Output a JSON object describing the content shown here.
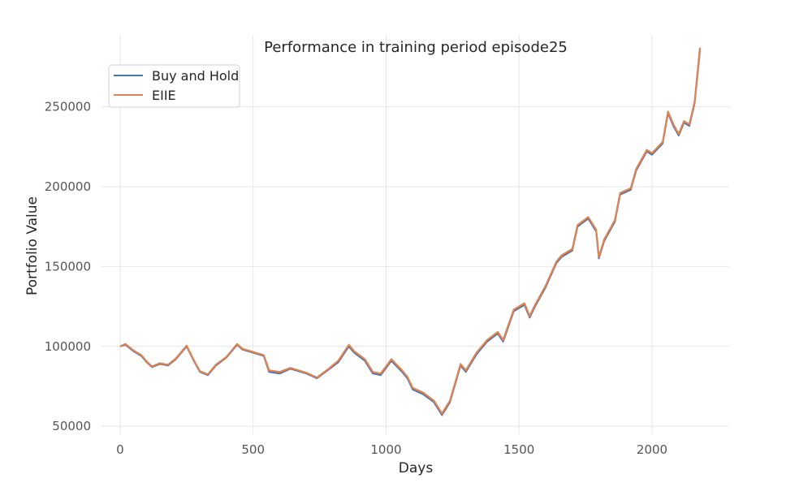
{
  "chart_data": {
    "type": "line",
    "title": "Performance in training period episode25",
    "xlabel": "Days",
    "ylabel": "Portfolio Value",
    "xlim": [
      -70,
      2290
    ],
    "ylim": [
      45000,
      295000
    ],
    "x_ticks": [
      0,
      500,
      1000,
      1500,
      2000
    ],
    "y_ticks": [
      50000,
      100000,
      150000,
      200000,
      250000
    ],
    "grid": true,
    "legend_placement": "top-left",
    "series": [
      {
        "name": "Buy and Hold",
        "color": "#4c72b0",
        "x": [
          0,
          20,
          50,
          80,
          100,
          120,
          150,
          180,
          210,
          250,
          280,
          300,
          330,
          360,
          400,
          440,
          460,
          500,
          540,
          560,
          600,
          640,
          700,
          740,
          780,
          820,
          860,
          880,
          920,
          950,
          980,
          1020,
          1060,
          1080,
          1100,
          1140,
          1180,
          1210,
          1240,
          1280,
          1300,
          1340,
          1380,
          1420,
          1440,
          1480,
          1520,
          1540,
          1560,
          1600,
          1640,
          1660,
          1700,
          1720,
          1760,
          1790,
          1800,
          1820,
          1860,
          1880,
          1920,
          1940,
          1980,
          2000,
          2040,
          2060,
          2080,
          2100,
          2120,
          2140,
          2160,
          2180
        ],
        "y": [
          100000,
          101000,
          97000,
          94000,
          90000,
          87000,
          89000,
          88000,
          92000,
          100000,
          90000,
          84000,
          82000,
          88000,
          93000,
          101000,
          98000,
          96000,
          94000,
          84000,
          83000,
          86000,
          83000,
          80000,
          85000,
          90000,
          100000,
          96000,
          91000,
          83000,
          82000,
          91000,
          84000,
          80000,
          73000,
          70000,
          65000,
          57000,
          65000,
          88000,
          84000,
          95000,
          103000,
          108000,
          103000,
          122000,
          126000,
          118000,
          125000,
          137000,
          152000,
          156000,
          160000,
          175000,
          180000,
          172000,
          155000,
          166000,
          178000,
          195000,
          198000,
          210000,
          222000,
          220000,
          227000,
          246000,
          238000,
          232000,
          240000,
          238000,
          252000,
          285000
        ]
      },
      {
        "name": "EIIE",
        "color": "#dd8452",
        "x": [
          0,
          20,
          50,
          80,
          100,
          120,
          150,
          180,
          210,
          250,
          280,
          300,
          330,
          360,
          400,
          440,
          460,
          500,
          540,
          560,
          600,
          640,
          700,
          740,
          780,
          820,
          860,
          880,
          920,
          950,
          980,
          1020,
          1060,
          1080,
          1100,
          1140,
          1180,
          1210,
          1240,
          1280,
          1300,
          1340,
          1380,
          1420,
          1440,
          1480,
          1520,
          1540,
          1560,
          1600,
          1640,
          1660,
          1700,
          1720,
          1760,
          1790,
          1800,
          1820,
          1860,
          1880,
          1920,
          1940,
          1980,
          2000,
          2040,
          2060,
          2080,
          2100,
          2120,
          2140,
          2160,
          2180
        ],
        "y": [
          100000,
          101500,
          97500,
          94500,
          90500,
          87500,
          89500,
          88500,
          92500,
          100500,
          90500,
          84500,
          82500,
          88500,
          93500,
          101500,
          98500,
          96500,
          94500,
          85000,
          84000,
          86500,
          83500,
          80500,
          85500,
          91000,
          101000,
          97000,
          92000,
          84000,
          83000,
          92000,
          85000,
          81000,
          74000,
          71000,
          66000,
          58000,
          66000,
          89000,
          85000,
          96000,
          104000,
          109000,
          104000,
          123000,
          127000,
          119000,
          126000,
          138000,
          153000,
          157000,
          161000,
          176000,
          181000,
          173000,
          156000,
          167000,
          179000,
          196000,
          199000,
          211000,
          223000,
          221000,
          228000,
          247000,
          239000,
          233000,
          241000,
          239000,
          253000,
          287000
        ]
      }
    ]
  }
}
